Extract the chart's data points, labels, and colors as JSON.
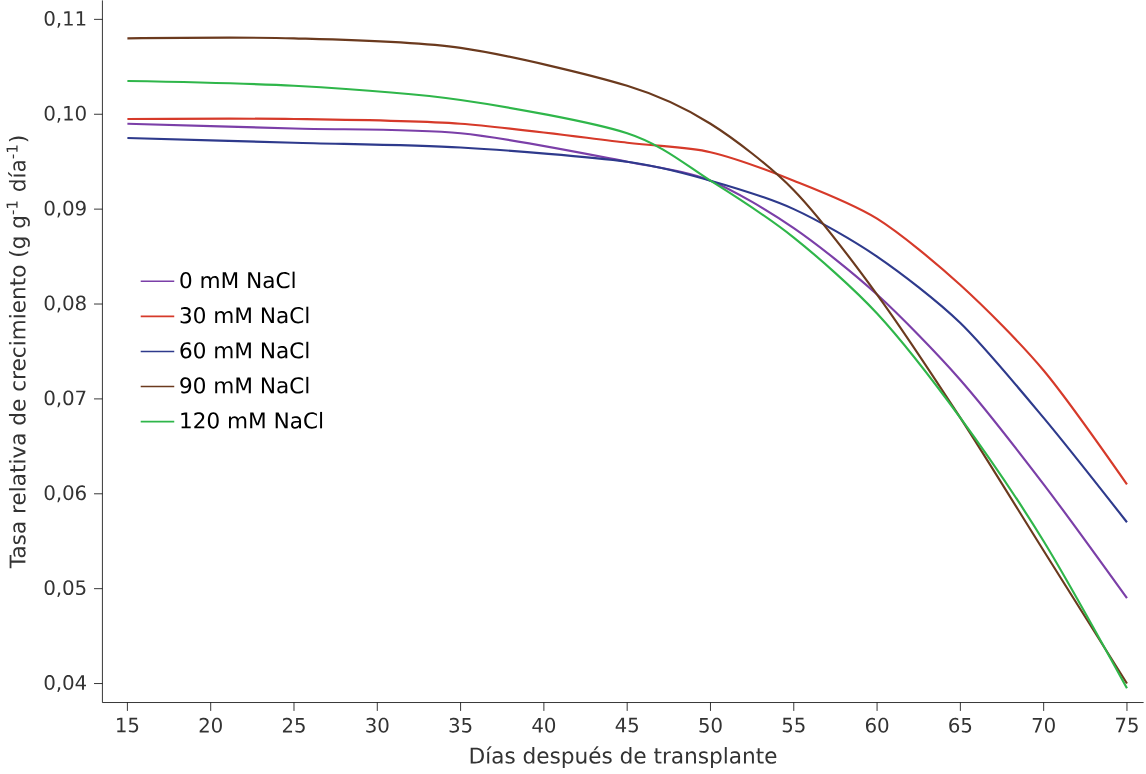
{
  "chart_data": {
    "type": "line",
    "xlabel": "Días después de transplante",
    "ylabel": "Tasa relativa de crecimiento (g g$^{-1}$ día$^{-1}$)",
    "x": [
      15,
      25,
      35,
      45,
      50,
      55,
      60,
      65,
      70,
      75
    ],
    "series": [
      {
        "name": "0 mM NaCl",
        "color": "#7b3fa8",
        "values": [
          0.099,
          0.0985,
          0.098,
          0.095,
          0.093,
          0.088,
          0.081,
          0.072,
          0.061,
          0.049
        ]
      },
      {
        "name": "30 mM NaCl",
        "color": "#d63a2a",
        "values": [
          0.0995,
          0.0995,
          0.099,
          0.097,
          0.096,
          0.093,
          0.089,
          0.082,
          0.073,
          0.061
        ]
      },
      {
        "name": "60 mM NaCl",
        "color": "#2e3a8c",
        "values": [
          0.0975,
          0.097,
          0.0965,
          0.095,
          0.093,
          0.09,
          0.085,
          0.078,
          0.068,
          0.057
        ]
      },
      {
        "name": "90 mM NaCl",
        "color": "#6b3a1e",
        "values": [
          0.108,
          0.108,
          0.107,
          0.103,
          0.099,
          0.092,
          0.081,
          0.068,
          0.054,
          0.04
        ]
      },
      {
        "name": "120 mM NaCl",
        "color": "#2fb64a",
        "values": [
          0.1035,
          0.103,
          0.1015,
          0.098,
          0.093,
          0.087,
          0.079,
          0.068,
          0.055,
          0.0395
        ]
      }
    ],
    "xlim": [
      13.5,
      76
    ],
    "ylim": [
      0.038,
      0.112
    ],
    "xticks": [
      15,
      20,
      25,
      30,
      35,
      40,
      45,
      50,
      55,
      60,
      65,
      70,
      75
    ],
    "yticks": [
      {
        "value": 0.04,
        "label": "0,04"
      },
      {
        "value": 0.05,
        "label": "0,05"
      },
      {
        "value": 0.06,
        "label": "0,06"
      },
      {
        "value": 0.07,
        "label": "0,07"
      },
      {
        "value": 0.08,
        "label": "0,08"
      },
      {
        "value": 0.09,
        "label": "0,09"
      },
      {
        "value": 0.1,
        "label": "0,10"
      },
      {
        "value": 0.11,
        "label": "0,11"
      }
    ],
    "grid": false,
    "legend": "left",
    "marker": "none",
    "line_style": "solid"
  }
}
